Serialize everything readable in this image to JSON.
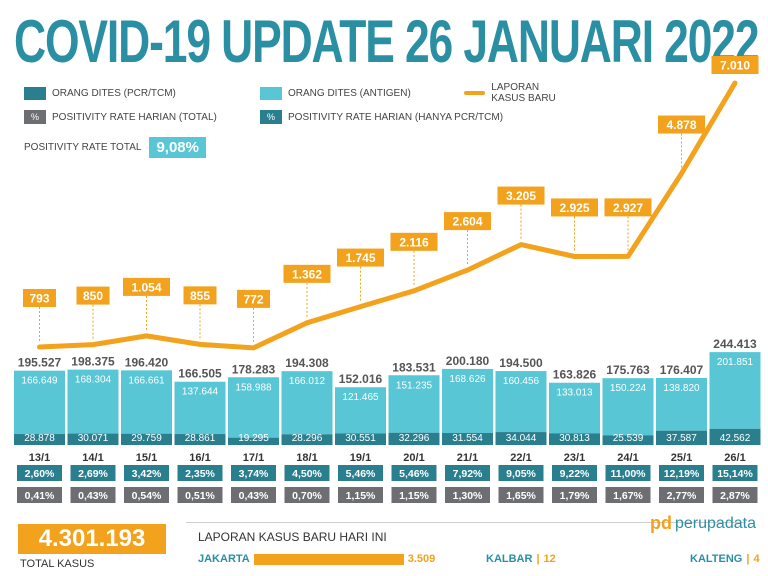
{
  "title": "COVID-19 UPDATE 26 JANUARI 2022",
  "legend": {
    "pcr": "ORANG DITES (PCR/TCM)",
    "antigen": "ORANG DITES (ANTIGEN)",
    "kasus": "LAPORAN KASUS BARU",
    "pos_total_label": "POSITIVITY RATE HARIAN (TOTAL)",
    "pos_pcr_label": "POSITIVITY RATE HARIAN (HANYA PCR/TCM)",
    "pct_symbol": "%"
  },
  "positivity_total": {
    "label": "POSITIVITY RATE TOTAL",
    "value": "9,08%"
  },
  "colors": {
    "pcr": "#2a7f8f",
    "antigen": "#58c6d5",
    "line": "#f2a21c",
    "pos_total": "#6d6e71",
    "pos_pcr": "#2a7f8f",
    "title": "#2a8fa3"
  },
  "chart_data": {
    "type": "bar",
    "categories": [
      "13/1",
      "14/1",
      "15/1",
      "16/1",
      "17/1",
      "18/1",
      "19/1",
      "20/1",
      "21/1",
      "22/1",
      "23/1",
      "24/1",
      "25/1",
      "26/1"
    ],
    "series": [
      {
        "name": "ORANG DITES (PCR/TCM)",
        "values": [
          28878,
          30071,
          29759,
          28861,
          19295,
          28296,
          30551,
          32296,
          31554,
          34044,
          30813,
          25539,
          37587,
          42562
        ],
        "labels": [
          "28.878",
          "30.071",
          "29.759",
          "28.861",
          "19.295",
          "28.296",
          "30.551",
          "32.296",
          "31.554",
          "34.044",
          "30.813",
          "25.539",
          "37.587",
          "42.562"
        ]
      },
      {
        "name": "ORANG DITES (ANTIGEN)",
        "values": [
          166649,
          168304,
          166661,
          137644,
          158988,
          166012,
          121465,
          151235,
          168626,
          160456,
          133013,
          150224,
          138820,
          201851
        ],
        "labels": [
          "166.649",
          "168.304",
          "166.661",
          "137.644",
          "158.988",
          "166.012",
          "121.465",
          "151.235",
          "168.626",
          "160.456",
          "133.013",
          "150.224",
          "138.820",
          "201.851"
        ]
      },
      {
        "name": "LAPORAN KASUS BARU",
        "values": [
          793,
          850,
          1054,
          855,
          772,
          1362,
          1745,
          2116,
          2604,
          3205,
          2925,
          2927,
          4878,
          7010
        ],
        "labels": [
          "793",
          "850",
          "1.054",
          "855",
          "772",
          "1.362",
          "1.745",
          "2.116",
          "2.604",
          "3.205",
          "2.925",
          "2.927",
          "4.878",
          "7.010"
        ]
      }
    ],
    "totals": [
      "195.527",
      "198.375",
      "196.420",
      "166.505",
      "178.283",
      "194.308",
      "152.016",
      "183.531",
      "200.180",
      "194.500",
      "163.826",
      "175.763",
      "176.407",
      "244.413"
    ],
    "total_values": [
      195527,
      198375,
      196420,
      166505,
      178283,
      194308,
      152016,
      183531,
      200180,
      194500,
      163826,
      175763,
      176407,
      244413
    ],
    "positivity_pcr": [
      "2,60%",
      "2,69%",
      "3,42%",
      "2,35%",
      "3,74%",
      "4,50%",
      "5,46%",
      "5,46%",
      "7,92%",
      "9,05%",
      "9,22%",
      "11,00%",
      "12,19%",
      "15,14%"
    ],
    "positivity_total": [
      "0,41%",
      "0,43%",
      "0,54%",
      "0,51%",
      "0,43%",
      "0,70%",
      "1,15%",
      "1,15%",
      "1,30%",
      "1,65%",
      "1,79%",
      "1,67%",
      "2,77%",
      "2,87%"
    ]
  },
  "total_kasus": {
    "value": "4.301.193",
    "label": "TOTAL KASUS"
  },
  "daily_title": "LAPORAN KASUS BARU HARI INI",
  "brand": {
    "mark": "pd",
    "name": "perupadata"
  },
  "provinces": [
    {
      "name": "JAKARTA",
      "value": "3.509",
      "num": 3509
    },
    {
      "name": "KALBAR",
      "value": "12",
      "num": 12
    },
    {
      "name": "KALTENG",
      "value": "4",
      "num": 4
    }
  ]
}
